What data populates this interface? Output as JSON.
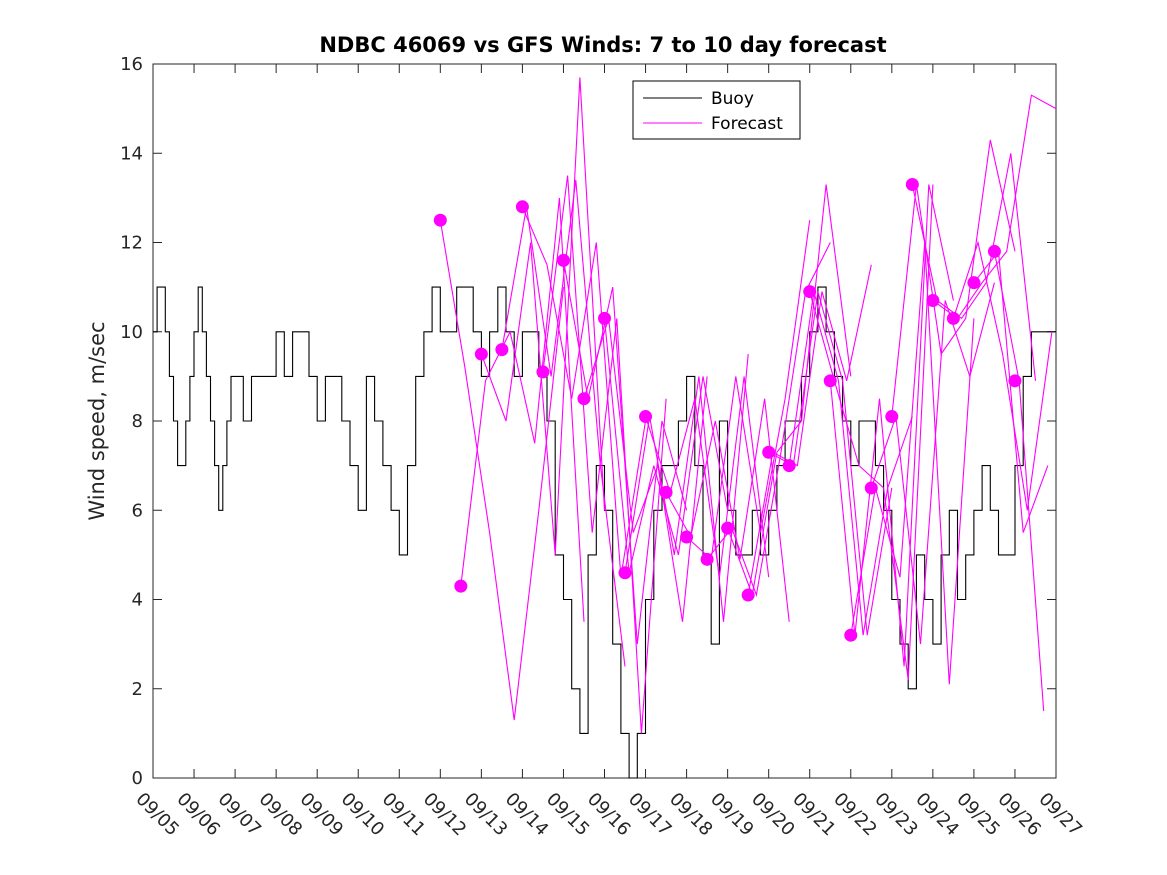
{
  "chart_data": {
    "type": "line",
    "title": "NDBC 46069 vs GFS Winds: 7 to 10 day forecast",
    "xlabel": "",
    "ylabel": "Wind speed, m/sec",
    "xlim": [
      0,
      22
    ],
    "ylim": [
      0,
      16
    ],
    "yticks": [
      0,
      2,
      4,
      6,
      8,
      10,
      12,
      14,
      16
    ],
    "xtick_labels": [
      "09/05",
      "09/06",
      "09/07",
      "09/08",
      "09/09",
      "09/10",
      "09/11",
      "09/12",
      "09/13",
      "09/14",
      "09/15",
      "09/16",
      "09/17",
      "09/18",
      "09/19",
      "09/20",
      "09/21",
      "09/22",
      "09/23",
      "09/24",
      "09/25",
      "09/26",
      "09/27"
    ],
    "grid": false,
    "legend": {
      "position": "top-right",
      "entries": [
        "Buoy",
        "Forecast"
      ]
    },
    "colors": {
      "buoy": "#000000",
      "forecast": "#ff00ff",
      "axis": "#262626"
    },
    "buoy": {
      "name": "Buoy",
      "x": [
        0,
        0.1,
        0.2,
        0.3,
        0.4,
        0.5,
        0.6,
        0.7,
        0.8,
        0.9,
        1.0,
        1.1,
        1.2,
        1.3,
        1.4,
        1.5,
        1.6,
        1.7,
        1.8,
        1.9,
        2.0,
        2.2,
        2.4,
        2.6,
        2.8,
        3.0,
        3.2,
        3.4,
        3.6,
        3.8,
        4.0,
        4.2,
        4.4,
        4.6,
        4.8,
        5.0,
        5.2,
        5.4,
        5.6,
        5.8,
        6.0,
        6.2,
        6.4,
        6.6,
        6.8,
        7.0,
        7.2,
        7.4,
        7.6,
        7.8,
        8.0,
        8.2,
        8.4,
        8.6,
        8.8,
        9.0,
        9.2,
        9.4,
        9.6,
        9.8,
        10.0,
        10.2,
        10.4,
        10.6,
        10.8,
        11.0,
        11.2,
        11.4,
        11.6,
        11.8,
        12.0,
        12.2,
        12.4,
        12.6,
        12.8,
        13.0,
        13.2,
        13.4,
        13.6,
        13.8,
        14.0,
        14.2,
        14.4,
        14.6,
        14.8,
        15.0,
        15.2,
        15.4,
        15.6,
        15.8,
        16.0,
        16.2,
        16.4,
        16.6,
        16.8,
        17.0,
        17.2,
        17.4,
        17.6,
        17.8,
        18.0,
        18.2,
        18.4,
        18.6,
        18.8,
        19.0,
        19.2,
        19.4,
        19.6,
        19.8,
        20.0,
        20.2,
        20.4,
        20.6,
        20.8,
        21.0,
        21.2,
        21.4,
        21.6,
        21.8,
        22.0
      ],
      "values": [
        10,
        11,
        11,
        10,
        9,
        8,
        7,
        7,
        8,
        9,
        10,
        11,
        10,
        9,
        8,
        7,
        6,
        7,
        8,
        9,
        9,
        8,
        9,
        9,
        9,
        10,
        9,
        10,
        10,
        9,
        8,
        9,
        9,
        8,
        7,
        6,
        9,
        8,
        7,
        6,
        5,
        7,
        9,
        10,
        11,
        10,
        10,
        11,
        11,
        10,
        9,
        10,
        11,
        10,
        9,
        10,
        10,
        9,
        8,
        5,
        4,
        2,
        1,
        5,
        7,
        6,
        3,
        1,
        0,
        1,
        4,
        6,
        7,
        7,
        8,
        9,
        7,
        5,
        3,
        8,
        6,
        5,
        5,
        6,
        5,
        6,
        7,
        8,
        8,
        9,
        10,
        11,
        10,
        9,
        8,
        7,
        8,
        8,
        7,
        6,
        4,
        3,
        2,
        5,
        4,
        3,
        5,
        6,
        4,
        5,
        6,
        7,
        6,
        5,
        5,
        7,
        9,
        10,
        10,
        10,
        10
      ]
    },
    "forecast_series": [
      {
        "name": "Forecast",
        "x": [
          7.0,
          7.6,
          8.2,
          8.8,
          9.4,
          10.0
        ],
        "values": [
          12.5,
          9.2,
          5.5,
          1.3,
          6.0,
          11.0
        ]
      },
      {
        "name": "Forecast",
        "x": [
          7.5,
          8.1,
          8.7,
          9.3,
          9.9,
          10.5
        ],
        "values": [
          4.3,
          8.9,
          10.0,
          7.5,
          13.0,
          3.5
        ]
      },
      {
        "name": "Forecast",
        "x": [
          8.0,
          8.6,
          9.2,
          9.8,
          10.4,
          11.0
        ],
        "values": [
          9.5,
          8.0,
          12.0,
          5.0,
          15.7,
          6.0
        ]
      },
      {
        "name": "Forecast",
        "x": [
          8.5,
          9.1,
          9.7,
          10.3,
          10.9,
          11.5
        ],
        "values": [
          9.6,
          12.8,
          9.0,
          13.4,
          7.0,
          2.5
        ]
      },
      {
        "name": "Forecast",
        "x": [
          9.0,
          9.6,
          10.2,
          10.8,
          11.4,
          12.0
        ],
        "values": [
          12.8,
          11.5,
          8.5,
          12.0,
          4.5,
          8.0
        ]
      },
      {
        "name": "Forecast",
        "x": [
          9.5,
          10.1,
          10.7,
          11.3,
          11.9,
          12.5
        ],
        "values": [
          9.1,
          13.5,
          5.5,
          10.3,
          1.0,
          8.5
        ]
      },
      {
        "name": "Forecast",
        "x": [
          10.0,
          10.6,
          11.2,
          11.8,
          12.4,
          13.0
        ],
        "values": [
          11.6,
          8.5,
          11.0,
          3.0,
          8.0,
          6.0
        ]
      },
      {
        "name": "Forecast",
        "x": [
          10.5,
          11.1,
          11.7,
          12.3,
          12.9,
          13.5
        ],
        "values": [
          8.5,
          10.3,
          5.5,
          7.0,
          3.5,
          9.0
        ]
      },
      {
        "name": "Forecast",
        "x": [
          11.0,
          11.6,
          12.2,
          12.8,
          13.4,
          14.0
        ],
        "values": [
          10.3,
          4.6,
          7.0,
          5.0,
          9.0,
          6.0
        ]
      },
      {
        "name": "Forecast",
        "x": [
          11.5,
          12.1,
          12.7,
          13.3,
          13.9,
          14.5
        ],
        "values": [
          4.6,
          8.1,
          5.0,
          9.0,
          3.5,
          9.5
        ]
      },
      {
        "name": "Forecast",
        "x": [
          12.0,
          12.6,
          13.2,
          13.8,
          14.4,
          15.0
        ],
        "values": [
          8.1,
          6.4,
          8.5,
          4.5,
          9.0,
          4.5
        ]
      },
      {
        "name": "Forecast",
        "x": [
          12.5,
          13.1,
          13.7,
          14.3,
          14.9,
          15.5
        ],
        "values": [
          6.4,
          5.4,
          8.0,
          4.9,
          8.5,
          3.5
        ]
      },
      {
        "name": "Forecast",
        "x": [
          13.0,
          13.6,
          14.2,
          14.8,
          15.4,
          16.0
        ],
        "values": [
          5.4,
          4.9,
          9.0,
          5.5,
          8.5,
          12.5
        ]
      },
      {
        "name": "Forecast",
        "x": [
          13.5,
          14.1,
          14.7,
          15.3,
          15.9,
          16.5
        ],
        "values": [
          4.9,
          5.6,
          4.1,
          7.3,
          10.9,
          12.0
        ]
      },
      {
        "name": "Forecast",
        "x": [
          14.0,
          14.6,
          15.2,
          15.8,
          16.4,
          17.0
        ],
        "values": [
          5.6,
          4.1,
          7.3,
          8.0,
          13.3,
          9.0
        ]
      },
      {
        "name": "Forecast",
        "x": [
          14.5,
          15.1,
          15.7,
          16.3,
          16.9,
          17.5
        ],
        "values": [
          4.1,
          7.3,
          7.0,
          10.9,
          8.9,
          11.5
        ]
      },
      {
        "name": "Forecast",
        "x": [
          15.0,
          15.6,
          16.2,
          16.8,
          17.4,
          18.0
        ],
        "values": [
          7.3,
          7.0,
          10.9,
          8.9,
          3.2,
          6.5
        ]
      },
      {
        "name": "Forecast",
        "x": [
          15.5,
          16.1,
          16.7,
          17.3,
          17.9,
          18.5
        ],
        "values": [
          7.0,
          10.9,
          8.9,
          3.2,
          6.5,
          8.1
        ]
      },
      {
        "name": "Forecast",
        "x": [
          16.0,
          16.6,
          17.2,
          17.8,
          18.4,
          19.0
        ],
        "values": [
          10.9,
          8.9,
          7.0,
          6.5,
          2.2,
          13.3
        ]
      },
      {
        "name": "Forecast",
        "x": [
          16.5,
          17.1,
          17.7,
          18.3,
          18.9,
          19.5
        ],
        "values": [
          8.9,
          3.2,
          8.5,
          2.5,
          13.3,
          10.7
        ]
      },
      {
        "name": "Forecast",
        "x": [
          17.0,
          17.6,
          18.2,
          18.8,
          19.4,
          20.0
        ],
        "values": [
          3.2,
          6.5,
          4.5,
          12.0,
          2.1,
          10.3
        ]
      },
      {
        "name": "Forecast",
        "x": [
          17.5,
          18.1,
          18.7,
          19.3,
          19.9,
          20.5
        ],
        "values": [
          6.5,
          8.1,
          3.0,
          10.7,
          9.0,
          11.1
        ]
      },
      {
        "name": "Forecast",
        "x": [
          18.0,
          18.6,
          19.2,
          19.8,
          20.4,
          21.0
        ],
        "values": [
          8.1,
          13.3,
          9.5,
          10.3,
          14.3,
          11.8
        ]
      },
      {
        "name": "Forecast",
        "x": [
          18.5,
          19.1,
          19.7,
          20.3,
          20.9,
          21.5
        ],
        "values": [
          13.3,
          10.7,
          10.3,
          11.1,
          14.0,
          8.9
        ]
      },
      {
        "name": "Forecast",
        "x": [
          19.0,
          19.6,
          20.2,
          20.8,
          21.4,
          22.0
        ],
        "values": [
          10.7,
          10.3,
          11.1,
          11.8,
          15.3,
          15.0
        ]
      },
      {
        "name": "Forecast",
        "x": [
          19.5,
          20.1,
          20.7,
          21.3,
          21.9
        ],
        "values": [
          10.3,
          12.0,
          9.5,
          6.0,
          10.0
        ]
      },
      {
        "name": "Forecast",
        "x": [
          20.0,
          20.6,
          21.2,
          21.8
        ],
        "values": [
          11.1,
          11.8,
          5.5,
          7.0
        ]
      },
      {
        "name": "Forecast",
        "x": [
          20.5,
          21.1,
          21.7
        ],
        "values": [
          11.8,
          8.9,
          1.5
        ]
      }
    ],
    "forecast_markers": {
      "x": [
        7.0,
        7.5,
        8.0,
        8.5,
        9.0,
        9.5,
        10.0,
        10.5,
        11.0,
        11.5,
        12.0,
        12.5,
        13.0,
        13.5,
        14.0,
        14.5,
        15.0,
        15.5,
        16.0,
        16.5,
        17.0,
        17.5,
        18.0,
        18.5,
        19.0,
        19.5,
        20.0,
        20.5,
        21.0
      ],
      "values": [
        12.5,
        4.3,
        9.5,
        9.6,
        12.8,
        9.1,
        11.6,
        8.5,
        10.3,
        4.6,
        8.1,
        6.4,
        5.4,
        4.9,
        5.6,
        4.1,
        7.3,
        7.0,
        10.9,
        8.9,
        3.2,
        6.5,
        8.1,
        13.3,
        10.7,
        10.3,
        11.1,
        11.8,
        8.9
      ]
    }
  }
}
